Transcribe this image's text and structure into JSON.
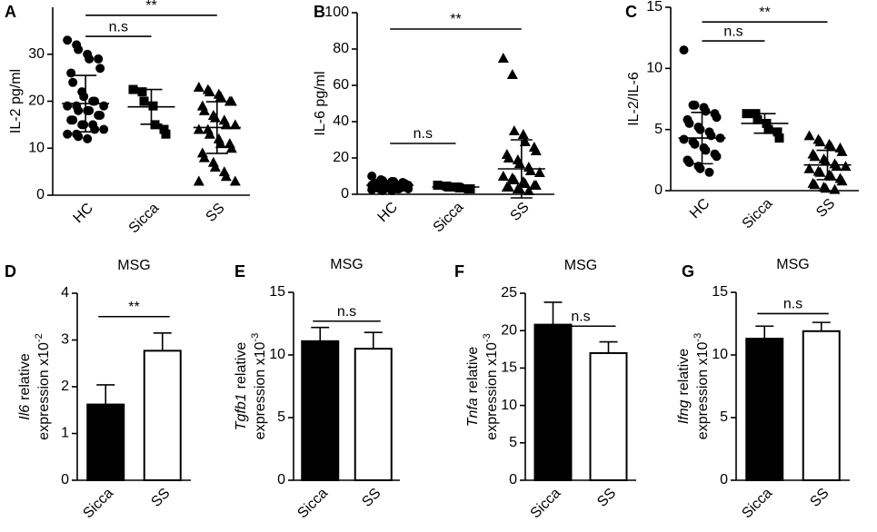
{
  "chart_data": [
    {
      "type": "dotplot",
      "panel": "A",
      "ylabel": "IL-2 pg/ml",
      "categories": [
        "HC",
        "Sicca",
        "SS"
      ],
      "ylim": [
        0,
        40
      ],
      "yticks": [
        0,
        10,
        20,
        30
      ],
      "values": [
        [
          33,
          32,
          31,
          30,
          29,
          29,
          27,
          26,
          24,
          22,
          21,
          20,
          20,
          19,
          19,
          19,
          18,
          18,
          18,
          17,
          17,
          16,
          16,
          15,
          15,
          15,
          14,
          14,
          13,
          13,
          12.5,
          12
        ],
        [
          22.5,
          22,
          20,
          19,
          15,
          14,
          13
        ],
        [
          23,
          22.5,
          22,
          21.5,
          21,
          20,
          20,
          19,
          18,
          17,
          16.5,
          16,
          15,
          15,
          14,
          14,
          13,
          12,
          11,
          11,
          10,
          9,
          8,
          7,
          6,
          5,
          4,
          3,
          3
        ]
      ],
      "means": [
        19.5,
        18.8,
        14.4
      ],
      "sds": [
        6,
        3.7,
        5.5
      ],
      "markers": [
        "circle",
        "square",
        "triangle"
      ],
      "annotations": [
        {
          "text": "n.s",
          "between": [
            "HC",
            "Sicca"
          ],
          "y": 33.8
        },
        {
          "text": "**",
          "between": [
            "HC",
            "SS"
          ],
          "y": 38.3
        }
      ]
    },
    {
      "type": "dotplot",
      "panel": "B",
      "ylabel": "IL-6 pg/ml",
      "categories": [
        "HC",
        "Sicca",
        "SS"
      ],
      "ylim": [
        0,
        100
      ],
      "yticks": [
        0,
        20,
        40,
        60,
        80,
        100
      ],
      "values": [
        [
          10,
          8,
          7.5,
          7,
          7,
          6.5,
          6,
          6,
          6,
          5.5,
          5.5,
          5,
          5,
          5,
          5,
          4.5,
          4.5,
          4.5,
          4,
          4,
          4,
          4,
          3.5,
          3.5,
          3.5,
          3,
          3,
          3,
          2.5,
          2.5,
          2,
          2
        ],
        [
          5,
          4.5,
          4,
          4,
          3.5,
          3,
          3
        ],
        [
          75,
          66,
          35,
          33,
          29,
          26,
          24,
          22,
          20,
          19,
          17,
          15,
          13,
          12,
          10,
          9,
          8,
          7,
          6,
          5,
          5,
          4,
          4,
          3,
          3,
          2
        ]
      ],
      "means": [
        5,
        4,
        14
      ],
      "sds": [
        1.5,
        1,
        16
      ],
      "markers": [
        "circle",
        "square",
        "triangle"
      ],
      "annotations": [
        {
          "text": "n.s",
          "between": [
            "HC",
            "Sicca"
          ],
          "y": 28
        },
        {
          "text": "**",
          "between": [
            "HC",
            "SS"
          ],
          "y": 91
        }
      ]
    },
    {
      "type": "dotplot",
      "panel": "C",
      "ylabel": "IL-2/IL-6",
      "categories": [
        "HC",
        "Sicca",
        "SS"
      ],
      "ylim": [
        0,
        15
      ],
      "yticks": [
        0,
        5,
        10,
        15
      ],
      "values": [
        [
          11.5,
          7,
          7,
          6.8,
          6.5,
          6.3,
          6,
          5.8,
          5.5,
          5.2,
          5,
          4.8,
          4.5,
          4.3,
          4.2,
          4,
          3.8,
          3.5,
          3.3,
          3,
          2.8,
          2.5,
          2.3,
          2,
          1.8,
          1.5
        ],
        [
          6.3,
          6.3,
          5.8,
          5.5,
          5,
          4.8,
          4.3
        ],
        [
          4.5,
          4.2,
          4,
          3.8,
          3.6,
          3.5,
          3.2,
          3,
          2.8,
          2.6,
          2.4,
          2.2,
          2,
          2,
          1.8,
          1.6,
          1.5,
          1.3,
          1.2,
          1,
          0.8,
          0.6,
          0.5,
          0.3,
          0.2,
          0.1
        ]
      ],
      "means": [
        4.3,
        5.5,
        2.1
      ],
      "sds": [
        2.1,
        0.8,
        1.2
      ],
      "markers": [
        "circle",
        "square",
        "triangle"
      ],
      "annotations": [
        {
          "text": "n.s",
          "between": [
            "HC",
            "Sicca"
          ],
          "y": 12.25
        },
        {
          "text": "**",
          "between": [
            "HC",
            "SS"
          ],
          "y": 13.8
        }
      ]
    },
    {
      "type": "bar",
      "panel": "D",
      "title": "MSG",
      "ylabel": {
        "gene": "Il6",
        "rest": "relative",
        "line2": "expression x10",
        "exponent": "-2"
      },
      "categories": [
        "Sicca",
        "SS"
      ],
      "values": [
        1.62,
        2.77
      ],
      "errors": [
        0.42,
        0.38
      ],
      "colors": [
        "#000000",
        "#ffffff"
      ],
      "ylim": [
        0,
        4
      ],
      "yticks": [
        0,
        1,
        2,
        3,
        4
      ],
      "annotations": [
        {
          "text": "**",
          "between": [
            "Sicca",
            "SS"
          ],
          "y": 3.5
        }
      ]
    },
    {
      "type": "bar",
      "panel": "E",
      "title": "MSG",
      "ylabel": {
        "gene": "Tgfb1",
        "rest": "relative",
        "line2": "expression x10",
        "exponent": "-3"
      },
      "categories": [
        "Sicca",
        "SS"
      ],
      "values": [
        11.1,
        10.5
      ],
      "errors": [
        1.1,
        1.3
      ],
      "colors": [
        "#000000",
        "#ffffff"
      ],
      "ylim": [
        0,
        15
      ],
      "yticks": [
        0,
        5,
        10,
        15
      ],
      "annotations": [
        {
          "text": "n.s",
          "between": [
            "Sicca",
            "SS"
          ],
          "y": 12.7
        }
      ]
    },
    {
      "type": "bar",
      "panel": "F",
      "title": "MSG",
      "ylabel": {
        "gene": "Tnfa",
        "rest": "relative",
        "line2": "expression x10",
        "exponent": "-3"
      },
      "categories": [
        "Sicca",
        "SS"
      ],
      "values": [
        20.8,
        17.0
      ],
      "errors": [
        3.0,
        1.5
      ],
      "colors": [
        "#000000",
        "#ffffff"
      ],
      "ylim": [
        0,
        25
      ],
      "yticks": [
        0,
        5,
        10,
        15,
        20,
        25
      ],
      "annotations": [
        {
          "text": "n.s",
          "between": [
            "Sicca",
            "SS"
          ],
          "y": 20.6
        }
      ]
    },
    {
      "type": "bar",
      "panel": "G",
      "title": "MSG",
      "ylabel": {
        "gene": "Ifng",
        "rest": "relative",
        "line2": "expression x10",
        "exponent": "-3"
      },
      "categories": [
        "Sicca",
        "SS"
      ],
      "values": [
        11.3,
        11.9
      ],
      "errors": [
        1.0,
        0.7
      ],
      "colors": [
        "#000000",
        "#ffffff"
      ],
      "ylim": [
        0,
        15
      ],
      "yticks": [
        0,
        5,
        10,
        15
      ],
      "annotations": [
        {
          "text": "n.s",
          "between": [
            "Sicca",
            "SS"
          ],
          "y": 13.3
        }
      ]
    }
  ]
}
